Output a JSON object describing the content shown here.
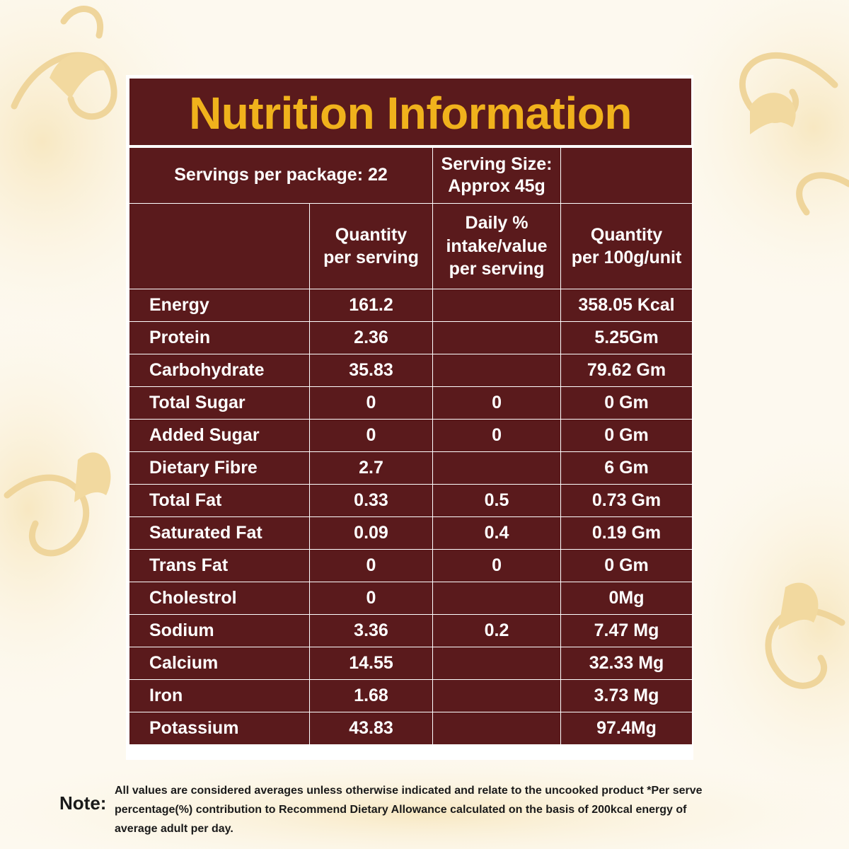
{
  "title": "Nutrition Information",
  "header": {
    "servings": "Servings per package: 22",
    "serving_size_line1": "Serving Size:",
    "serving_size_line2": "Approx 45g",
    "col_qty_serving": [
      "Quantity",
      "per serving"
    ],
    "col_daily": [
      "Daily %",
      "intake/value",
      "per serving"
    ],
    "col_qty_100g": [
      "Quantity",
      "per 100g/unit"
    ]
  },
  "rows": [
    {
      "name": "Energy",
      "per_serving": "161.2",
      "daily": "",
      "per_100g": "358.05 Kcal"
    },
    {
      "name": "Protein",
      "per_serving": "2.36",
      "daily": "",
      "per_100g": "5.25Gm"
    },
    {
      "name": "Carbohydrate",
      "per_serving": "35.83",
      "daily": "",
      "per_100g": "79.62 Gm"
    },
    {
      "name": "Total Sugar",
      "per_serving": "0",
      "daily": "0",
      "per_100g": "0 Gm"
    },
    {
      "name": "Added Sugar",
      "per_serving": "0",
      "daily": "0",
      "per_100g": "0 Gm"
    },
    {
      "name": "Dietary Fibre",
      "per_serving": "2.7",
      "daily": "",
      "per_100g": "6 Gm"
    },
    {
      "name": "Total Fat",
      "per_serving": "0.33",
      "daily": "0.5",
      "per_100g": "0.73 Gm"
    },
    {
      "name": "Saturated Fat",
      "per_serving": "0.09",
      "daily": "0.4",
      "per_100g": "0.19 Gm"
    },
    {
      "name": "Trans Fat",
      "per_serving": "0",
      "daily": "0",
      "per_100g": "0 Gm"
    },
    {
      "name": "Cholestrol",
      "per_serving": "0",
      "daily": "",
      "per_100g": "0Mg"
    },
    {
      "name": "Sodium",
      "per_serving": "3.36",
      "daily": "0.2",
      "per_100g": "7.47 Mg"
    },
    {
      "name": "Calcium",
      "per_serving": "14.55",
      "daily": "",
      "per_100g": "32.33 Mg"
    },
    {
      "name": "Iron",
      "per_serving": "1.68",
      "daily": "",
      "per_100g": "3.73 Mg"
    },
    {
      "name": "Potassium",
      "per_serving": "43.83",
      "daily": "",
      "per_100g": "97.4Mg"
    }
  ],
  "note": {
    "label": "Note:",
    "lines": [
      "All values are considered averages unless otherwise indicated and relate to the uncooked product *Per serve",
      "percentage(%) contribution to Recommend Dietary Allowance calculated on the basis of 200kcal energy of",
      "average adult per day."
    ]
  },
  "colors": {
    "panel_bg": "#5a1a1c",
    "title_color": "#f0b21c",
    "text_color": "#ffffff",
    "page_bg": "#fdf9ef",
    "decor": "#f3dfae"
  },
  "decor_icons": [
    "floral-ornament-icon"
  ]
}
